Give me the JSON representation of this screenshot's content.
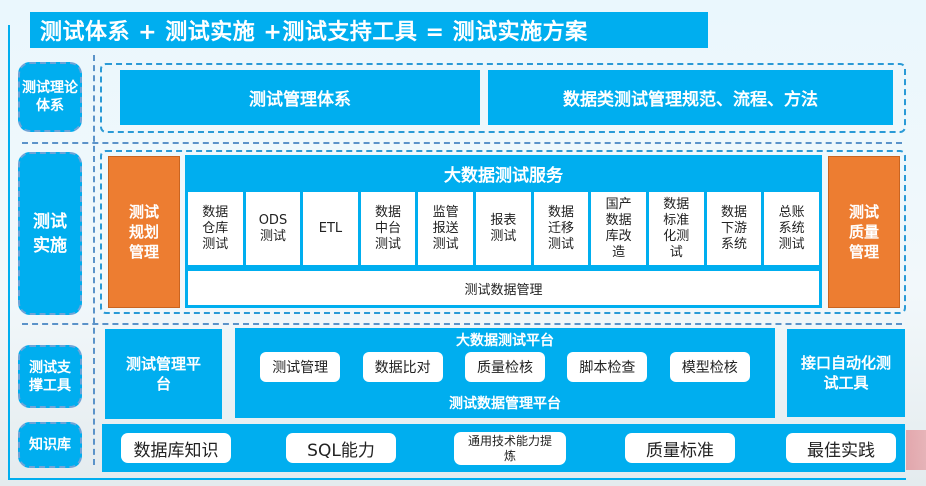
{
  "title": "测试体系 + 测试实施 +测试支持工具 = 测试实施方案",
  "rows": {
    "theory": {
      "label": "测试理论体系",
      "items": [
        "测试管理体系",
        "数据类测试管理规范、流程、方法"
      ]
    },
    "implementation": {
      "label": "测试实施",
      "left": "测试规划管理",
      "right": "测试质量管理",
      "service_title": "大数据测试服务",
      "services": [
        "数据仓库测试",
        "ODS测试",
        "ETL",
        "数据中台测试",
        "监管报送测试",
        "报表测试",
        "数据迁移测试",
        "国产数据库改造",
        "数据标准化测试",
        "数据下游系统",
        "总账系统测试"
      ],
      "data_mgmt": "测试数据管理"
    },
    "tools": {
      "label": "测试支撑工具",
      "left": "测试管理平台",
      "platform_title": "大数据测试平台",
      "platform_items": [
        "测试管理",
        "数据比对",
        "质量检核",
        "脚本检查",
        "模型检核"
      ],
      "platform_footer": "测试数据管理平台",
      "right": "接口自动化测试工具"
    },
    "knowledge": {
      "label": "知识库",
      "items": [
        "数据库知识",
        "SQL能力",
        "通用技术能力提炼",
        "质量标准",
        "最佳实践"
      ]
    }
  },
  "colors": {
    "blue": "#00aeef",
    "orange": "#ed7d31"
  }
}
